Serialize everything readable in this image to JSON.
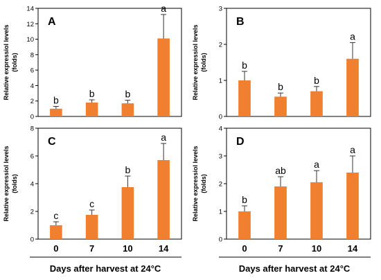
{
  "chart_data": [
    {
      "type": "bar",
      "panel": "A",
      "categories": [
        "0",
        "7",
        "10",
        "14"
      ],
      "values": [
        1.0,
        1.8,
        1.7,
        10.1
      ],
      "errors": [
        0.3,
        0.35,
        0.4,
        3.1
      ],
      "significance": [
        "b",
        "b",
        "b",
        "a"
      ],
      "ylabel_lines": [
        "Relative expressiol levels",
        "(folds)"
      ],
      "ylim": [
        0,
        14
      ],
      "yticks": [
        0,
        2,
        4,
        6,
        8,
        10,
        12,
        14
      ],
      "bar_color": "#F08030"
    },
    {
      "type": "bar",
      "panel": "B",
      "categories": [
        "0",
        "7",
        "10",
        "14"
      ],
      "values": [
        1.0,
        0.55,
        0.7,
        1.6
      ],
      "errors": [
        0.25,
        0.1,
        0.13,
        0.45
      ],
      "significance": [
        "b",
        "b",
        "b",
        "a"
      ],
      "ylabel_lines": [
        "Relative expressiol levels",
        "(folds)"
      ],
      "ylim": [
        0,
        3
      ],
      "yticks": [
        0,
        1,
        2,
        3
      ],
      "bar_color": "#F08030"
    },
    {
      "type": "bar",
      "panel": "C",
      "categories": [
        "0",
        "7",
        "10",
        "14"
      ],
      "values": [
        1.0,
        1.75,
        3.75,
        5.7
      ],
      "errors": [
        0.25,
        0.35,
        0.8,
        1.2
      ],
      "significance": [
        "c",
        "c",
        "b",
        "a"
      ],
      "ylabel_lines": [
        "Relative expressiol levels",
        "(folds)"
      ],
      "ylim": [
        0,
        8
      ],
      "yticks": [
        0,
        2,
        4,
        6,
        8
      ],
      "bar_color": "#F08030"
    },
    {
      "type": "bar",
      "panel": "D",
      "categories": [
        "0",
        "7",
        "10",
        "14"
      ],
      "values": [
        1.0,
        1.9,
        2.05,
        2.4
      ],
      "errors": [
        0.2,
        0.35,
        0.42,
        0.6
      ],
      "significance": [
        "b",
        "ab",
        "a",
        "a"
      ],
      "ylabel_lines": [
        "Relative expressiol levels",
        "(folds)"
      ],
      "ylim": [
        0,
        4
      ],
      "yticks": [
        0,
        1,
        2,
        3,
        4
      ],
      "bar_color": "#F08030"
    }
  ],
  "xlabel": "Days after harvest at 24°C"
}
